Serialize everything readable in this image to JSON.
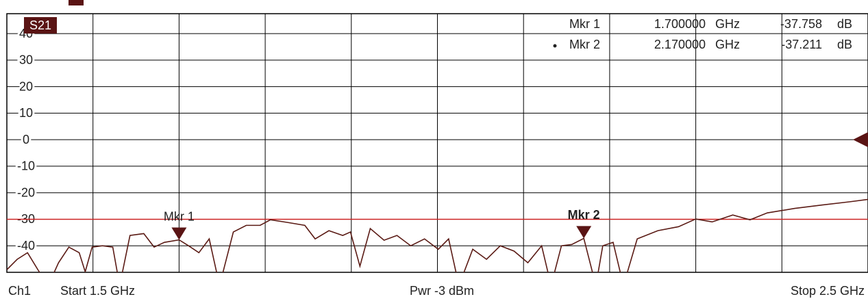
{
  "chart_data": {
    "type": "line",
    "trace_label": "S21",
    "xlim": [
      1.5,
      2.5
    ],
    "xticks": [
      1.5,
      1.6,
      1.7,
      1.8,
      1.9,
      2.0,
      2.1,
      2.2,
      2.3,
      2.4,
      2.5
    ],
    "ylim": [
      -50,
      47.5
    ],
    "yticks": [
      40,
      30,
      20,
      10,
      0,
      -10,
      -20,
      -30,
      -40
    ],
    "grid": true,
    "limit_line": -30,
    "limit_color": "#cc2222",
    "reference_level": 0,
    "x": [
      1.5,
      1.512,
      1.524,
      1.536,
      1.548,
      1.56,
      1.572,
      1.584,
      1.591,
      1.599,
      1.611,
      1.623,
      1.631,
      1.643,
      1.659,
      1.671,
      1.683,
      1.7,
      1.711,
      1.723,
      1.735,
      1.747,
      1.763,
      1.778,
      1.794,
      1.806,
      1.826,
      1.846,
      1.858,
      1.874,
      1.89,
      1.899,
      1.91,
      1.922,
      1.938,
      1.953,
      1.969,
      1.985,
      2.001,
      2.013,
      2.025,
      2.041,
      2.057,
      2.073,
      2.089,
      2.105,
      2.121,
      2.132,
      2.144,
      2.156,
      2.17,
      2.184,
      2.192,
      2.204,
      2.216,
      2.232,
      2.256,
      2.28,
      2.3,
      2.319,
      2.343,
      2.363,
      2.383,
      2.415,
      2.447,
      2.479,
      2.5
    ],
    "series": [
      {
        "color": "#5a1a14",
        "values": [
          -49.0,
          -45.1,
          -42.6,
          -49.0,
          -55,
          -46.4,
          -40.5,
          -42.6,
          -49.8,
          -40.5,
          -40.0,
          -40.5,
          -55,
          -36.1,
          -35.4,
          -40.5,
          -38.7,
          -37.758,
          -40.0,
          -42.6,
          -37.4,
          -55,
          -34.8,
          -32.3,
          -32.3,
          -30.2,
          -31.2,
          -32.3,
          -37.4,
          -34.3,
          -36.1,
          -34.8,
          -47.7,
          -33.5,
          -37.9,
          -36.1,
          -40.0,
          -37.4,
          -41.3,
          -37.4,
          -55,
          -41.3,
          -45.1,
          -40.0,
          -42.0,
          -46.4,
          -40.0,
          -55,
          -40.0,
          -39.5,
          -37.211,
          -55,
          -40.0,
          -38.7,
          -55,
          -37.4,
          -34.3,
          -32.8,
          -29.9,
          -31.0,
          -28.4,
          -30.2,
          -27.6,
          -25.9,
          -24.6,
          -23.4,
          -22.5
        ]
      }
    ],
    "markers": [
      {
        "label": "Mkr 1",
        "freq": {
          "value": 1.7,
          "label": "1.700000"
        },
        "freq_unit": "GHz",
        "value": -37.758,
        "unit": "dB",
        "active": false
      },
      {
        "label": "Mkr 2",
        "freq": {
          "value": 2.17,
          "label": "2.170000"
        },
        "freq_unit": "GHz",
        "value": -37.211,
        "unit": "dB",
        "active": true
      }
    ],
    "status": {
      "channel": "Ch1",
      "start": "Start 1.5 GHz",
      "power": "Pwr -3 dBm",
      "stop": "Stop 2.5 GHz"
    }
  }
}
